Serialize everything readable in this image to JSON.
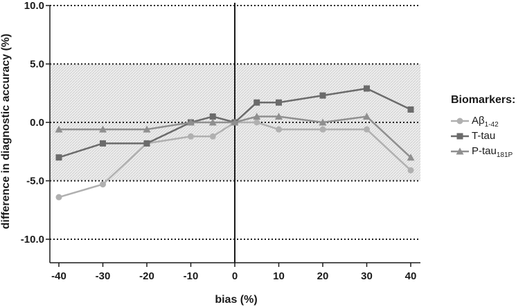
{
  "chart_data": {
    "type": "line",
    "xlabel": "bias (%)",
    "ylabel": "difference in diagnostic accuracy (%)",
    "xlim": [
      -40,
      40
    ],
    "ylim": [
      -12,
      10
    ],
    "x_ticks": [
      -40,
      -30,
      -20,
      -10,
      0,
      10,
      20,
      30,
      40
    ],
    "x_tick_labels": [
      "-40",
      "-30",
      "-20",
      "-10",
      "0",
      "10",
      "20",
      "30",
      "40"
    ],
    "y_ticks": [
      10,
      5,
      0,
      -5,
      -10
    ],
    "y_tick_labels": [
      "10.0",
      "5.0",
      "0.0",
      "-5.0",
      "-10.0"
    ],
    "shaded_band": [
      -5,
      5
    ],
    "grid": "dotted horizontal lines at y tick values",
    "legend_position": "right",
    "legend_title": "Biomarkers:",
    "series": [
      {
        "name": "Aβ1-42",
        "label_main": "Aβ",
        "label_sub": "1-42",
        "marker": "circle",
        "color": "#b0b0b0",
        "x": [
          -40,
          -30,
          -20,
          -10,
          -5,
          0,
          5,
          10,
          20,
          30,
          40
        ],
        "values": [
          -6.4,
          -5.3,
          -1.8,
          -1.2,
          -1.2,
          0.0,
          0.0,
          -0.6,
          -0.6,
          -0.6,
          -4.1
        ]
      },
      {
        "name": "T-tau",
        "label_main": "T-tau",
        "label_sub": "",
        "marker": "square",
        "color": "#6b6b6b",
        "x": [
          -40,
          -30,
          -20,
          -10,
          -5,
          0,
          5,
          10,
          20,
          30,
          40
        ],
        "values": [
          -3.0,
          -1.8,
          -1.8,
          0.0,
          0.5,
          0.0,
          1.7,
          1.7,
          2.3,
          2.9,
          1.1
        ]
      },
      {
        "name": "P-tau181P",
        "label_main": "P-tau",
        "label_sub": "181P",
        "marker": "triangle",
        "color": "#8f8f8f",
        "x": [
          -40,
          -30,
          -20,
          -10,
          -5,
          0,
          5,
          10,
          20,
          30,
          40
        ],
        "values": [
          -0.6,
          -0.6,
          -0.6,
          0.0,
          0.0,
          0.0,
          0.5,
          0.5,
          0.0,
          0.5,
          -3.0
        ]
      }
    ]
  }
}
